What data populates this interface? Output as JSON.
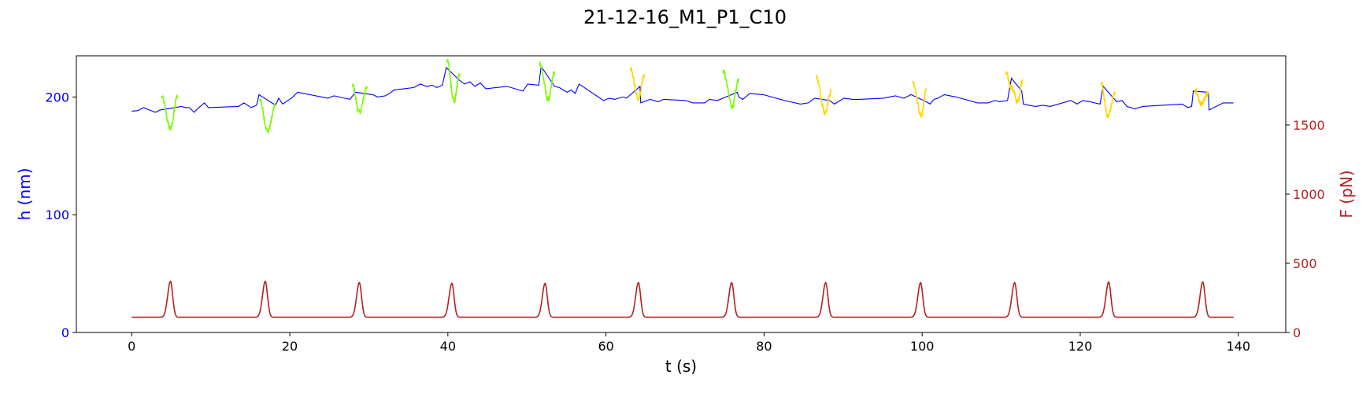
{
  "chart_data": {
    "type": "line",
    "title": "21-12-16_M1_P1_C10",
    "xlabel": "t (s)",
    "ylabel_left": "h (nm)",
    "ylabel_right": "F (pN)",
    "xlim": [
      -7,
      146
    ],
    "ylim_left": [
      0,
      235
    ],
    "ylim_right": [
      0,
      2000
    ],
    "x_ticks": [
      0,
      20,
      40,
      60,
      80,
      100,
      120,
      140
    ],
    "y_left_ticks": [
      0,
      100,
      200
    ],
    "y_right_ticks": [
      0,
      500,
      1000,
      1500
    ],
    "grid": false,
    "legend": "none",
    "colors": {
      "height": "#0000ff",
      "force": "#b22222",
      "compression_green": "#7cfc00",
      "compression_gold": "#ffd700",
      "left_axis": "#0000ff",
      "right_axis": "#b22222"
    },
    "height_baseline": {
      "axis": "left",
      "color": "#0000ff",
      "points": [
        [
          0,
          188
        ],
        [
          0.8,
          188.5
        ],
        [
          1.5,
          191
        ],
        [
          2.2,
          189
        ],
        [
          3,
          187
        ],
        [
          3.6,
          189
        ],
        [
          6.3,
          192
        ],
        [
          6.8,
          191
        ],
        [
          7.3,
          191
        ],
        [
          7.9,
          187
        ],
        [
          8.5,
          191
        ],
        [
          9.2,
          195
        ],
        [
          9.7,
          191
        ],
        [
          13.5,
          192
        ],
        [
          14.2,
          195
        ],
        [
          15.1,
          191
        ],
        [
          15.8,
          193
        ],
        [
          16.1,
          202
        ],
        [
          18.2,
          193
        ],
        [
          18.6,
          199
        ],
        [
          19.1,
          194
        ],
        [
          20.2,
          199
        ],
        [
          21,
          204
        ],
        [
          24.8,
          199
        ],
        [
          25.6,
          201
        ],
        [
          27.6,
          198
        ],
        [
          28.3,
          204
        ],
        [
          30.5,
          202
        ],
        [
          31.1,
          200
        ],
        [
          32.1,
          201
        ],
        [
          32.6,
          203
        ],
        [
          33.2,
          206
        ],
        [
          35.7,
          208
        ],
        [
          36.5,
          211
        ],
        [
          37.3,
          209
        ],
        [
          38,
          210
        ],
        [
          38.6,
          208
        ],
        [
          39.3,
          210
        ],
        [
          39.8,
          225
        ],
        [
          41.5,
          214
        ],
        [
          42.1,
          211
        ],
        [
          42.8,
          213
        ],
        [
          43.4,
          209
        ],
        [
          44.1,
          212
        ],
        [
          44.8,
          207
        ],
        [
          47.5,
          209
        ],
        [
          49.5,
          205
        ],
        [
          50.1,
          211
        ],
        [
          51.5,
          210
        ],
        [
          51.8,
          226
        ],
        [
          53.5,
          209
        ],
        [
          54.1,
          208
        ],
        [
          54.6,
          206
        ],
        [
          55.1,
          204
        ],
        [
          55.6,
          206
        ],
        [
          56.1,
          203
        ],
        [
          56.6,
          211
        ],
        [
          59.7,
          197
        ],
        [
          60.4,
          199
        ],
        [
          61.1,
          198
        ],
        [
          62.1,
          200
        ],
        [
          62.6,
          199
        ],
        [
          64.3,
          209
        ],
        [
          64.4,
          195
        ],
        [
          65.6,
          198
        ],
        [
          66.6,
          196
        ],
        [
          67.3,
          198
        ],
        [
          70.1,
          197
        ],
        [
          71,
          195
        ],
        [
          72.5,
          195
        ],
        [
          73.1,
          198
        ],
        [
          74.1,
          197
        ],
        [
          76.6,
          204
        ],
        [
          76.8,
          200
        ],
        [
          77.3,
          198
        ],
        [
          78.2,
          203
        ],
        [
          79.9,
          202
        ],
        [
          82.6,
          197
        ],
        [
          84.6,
          194
        ],
        [
          85.6,
          195
        ],
        [
          86.4,
          199
        ],
        [
          88.3,
          197
        ],
        [
          88.9,
          194
        ],
        [
          90.1,
          199
        ],
        [
          91.2,
          198
        ],
        [
          92.1,
          198
        ],
        [
          95.1,
          199
        ],
        [
          96.6,
          201
        ],
        [
          97.7,
          199
        ],
        [
          98.6,
          202
        ],
        [
          100.5,
          196
        ],
        [
          101,
          194
        ],
        [
          101.5,
          198
        ],
        [
          102,
          199
        ],
        [
          102.8,
          202
        ],
        [
          104.3,
          200
        ],
        [
          107,
          195
        ],
        [
          108.3,
          195
        ],
        [
          109.2,
          197
        ],
        [
          109.8,
          196
        ],
        [
          110.8,
          197
        ],
        [
          111.3,
          216
        ],
        [
          112.6,
          205
        ],
        [
          112.8,
          194
        ],
        [
          114.3,
          192
        ],
        [
          115.3,
          193
        ],
        [
          116.2,
          192
        ],
        [
          118.8,
          197
        ],
        [
          119.6,
          194
        ],
        [
          120.3,
          197
        ],
        [
          121.2,
          196
        ],
        [
          122.5,
          194
        ],
        [
          122.9,
          209
        ],
        [
          124.6,
          196
        ],
        [
          125.3,
          197
        ],
        [
          125.9,
          192
        ],
        [
          126.9,
          190
        ],
        [
          127.9,
          192
        ],
        [
          132.9,
          194
        ],
        [
          133.6,
          191
        ],
        [
          134.1,
          192
        ],
        [
          134.3,
          205
        ],
        [
          136.2,
          204
        ],
        [
          136.3,
          189
        ],
        [
          137.2,
          192
        ],
        [
          138.1,
          195
        ],
        [
          139.4,
          195
        ]
      ]
    },
    "compression_cycles": [
      {
        "color": "#7cfc00",
        "points": [
          [
            3.8,
            200
          ],
          [
            4.9,
            173
          ],
          [
            5.8,
            201
          ]
        ]
      },
      {
        "color": "#7cfc00",
        "points": [
          [
            16.2,
            198
          ],
          [
            17.2,
            171
          ],
          [
            18.2,
            193
          ]
        ]
      },
      {
        "color": "#7cfc00",
        "points": [
          [
            27.9,
            210
          ],
          [
            28.8,
            187
          ],
          [
            29.8,
            209
          ]
        ]
      },
      {
        "color": "#7cfc00",
        "points": [
          [
            39.9,
            231
          ],
          [
            40.8,
            197
          ],
          [
            41.5,
            220
          ]
        ]
      },
      {
        "color": "#7cfc00",
        "points": [
          [
            51.6,
            229
          ],
          [
            52.7,
            198
          ],
          [
            53.5,
            221
          ]
        ]
      },
      {
        "color": "#ffd700",
        "points": [
          [
            63.1,
            223
          ],
          [
            64.1,
            199
          ],
          [
            64.9,
            219
          ]
        ]
      },
      {
        "color": "#7cfc00",
        "points": [
          [
            74.8,
            222
          ],
          [
            76.0,
            192
          ],
          [
            76.8,
            215
          ]
        ]
      },
      {
        "color": "#ffd700",
        "points": [
          [
            86.6,
            217
          ],
          [
            87.7,
            187
          ],
          [
            88.5,
            205
          ]
        ]
      },
      {
        "color": "#ffd700",
        "points": [
          [
            98.8,
            213
          ],
          [
            99.9,
            184
          ],
          [
            100.5,
            206
          ]
        ]
      },
      {
        "color": "#ffd700",
        "points": [
          [
            110.6,
            220
          ],
          [
            111.3,
            208
          ],
          [
            112.1,
            196
          ],
          [
            112.7,
            215
          ]
        ]
      },
      {
        "color": "#ffd700",
        "points": [
          [
            122.6,
            212
          ],
          [
            123.5,
            184
          ],
          [
            124.4,
            203
          ]
        ]
      },
      {
        "color": "#ffd700",
        "points": [
          [
            134.6,
            205
          ],
          [
            135.3,
            194
          ],
          [
            136.2,
            203
          ]
        ]
      }
    ],
    "force": {
      "axis": "right",
      "color": "#b22222",
      "baseline": 110,
      "peak_times": [
        4.9,
        16.9,
        28.8,
        40.5,
        52.3,
        64.1,
        75.9,
        87.8,
        99.8,
        111.7,
        123.6,
        135.5
      ],
      "peak_values": [
        370,
        370,
        360,
        355,
        355,
        360,
        360,
        360,
        360,
        360,
        365,
        365
      ],
      "x_start": 0,
      "x_end": 139.4
    }
  }
}
